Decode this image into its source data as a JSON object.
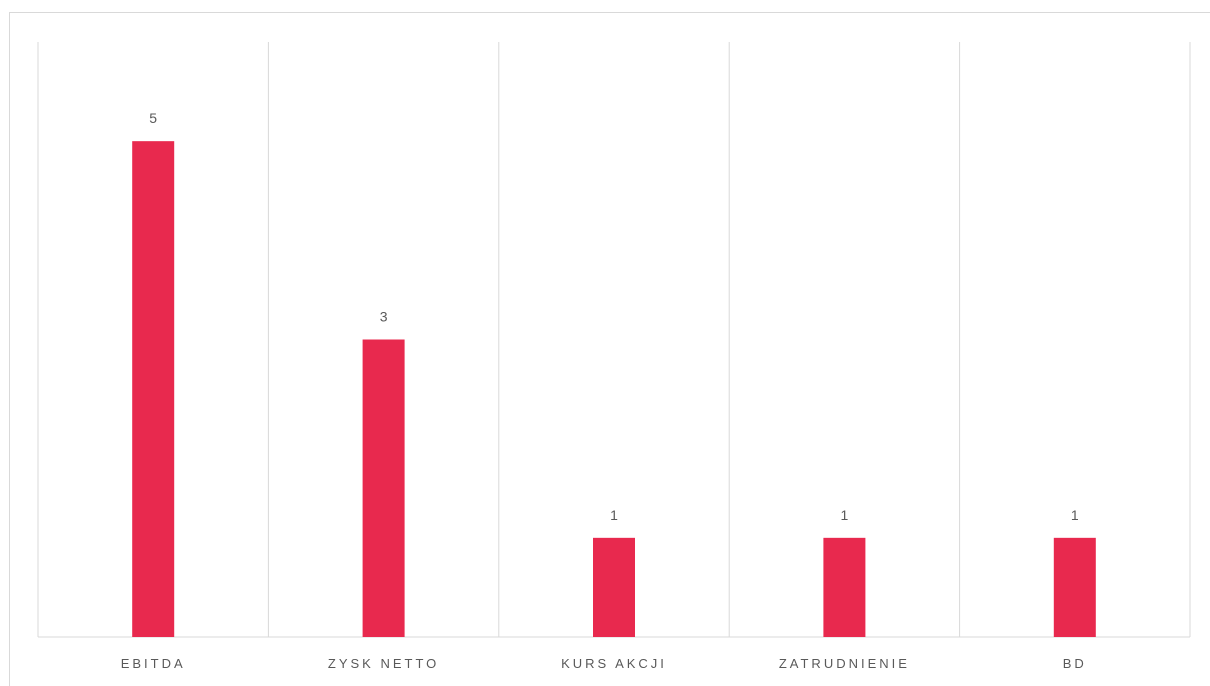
{
  "chart_data": {
    "type": "bar",
    "categories": [
      "EBITDA",
      "ZYSK NETTO",
      "KURS AKCJI",
      "ZATRUDNIENIE",
      "BD"
    ],
    "values": [
      5,
      3,
      1,
      1,
      1
    ],
    "title": "",
    "xlabel": "",
    "ylabel": "",
    "ylim": [
      0,
      6
    ],
    "grid": "vertical category separators",
    "legend": "none",
    "bar_color": "#e8294e",
    "data_labels": true
  }
}
